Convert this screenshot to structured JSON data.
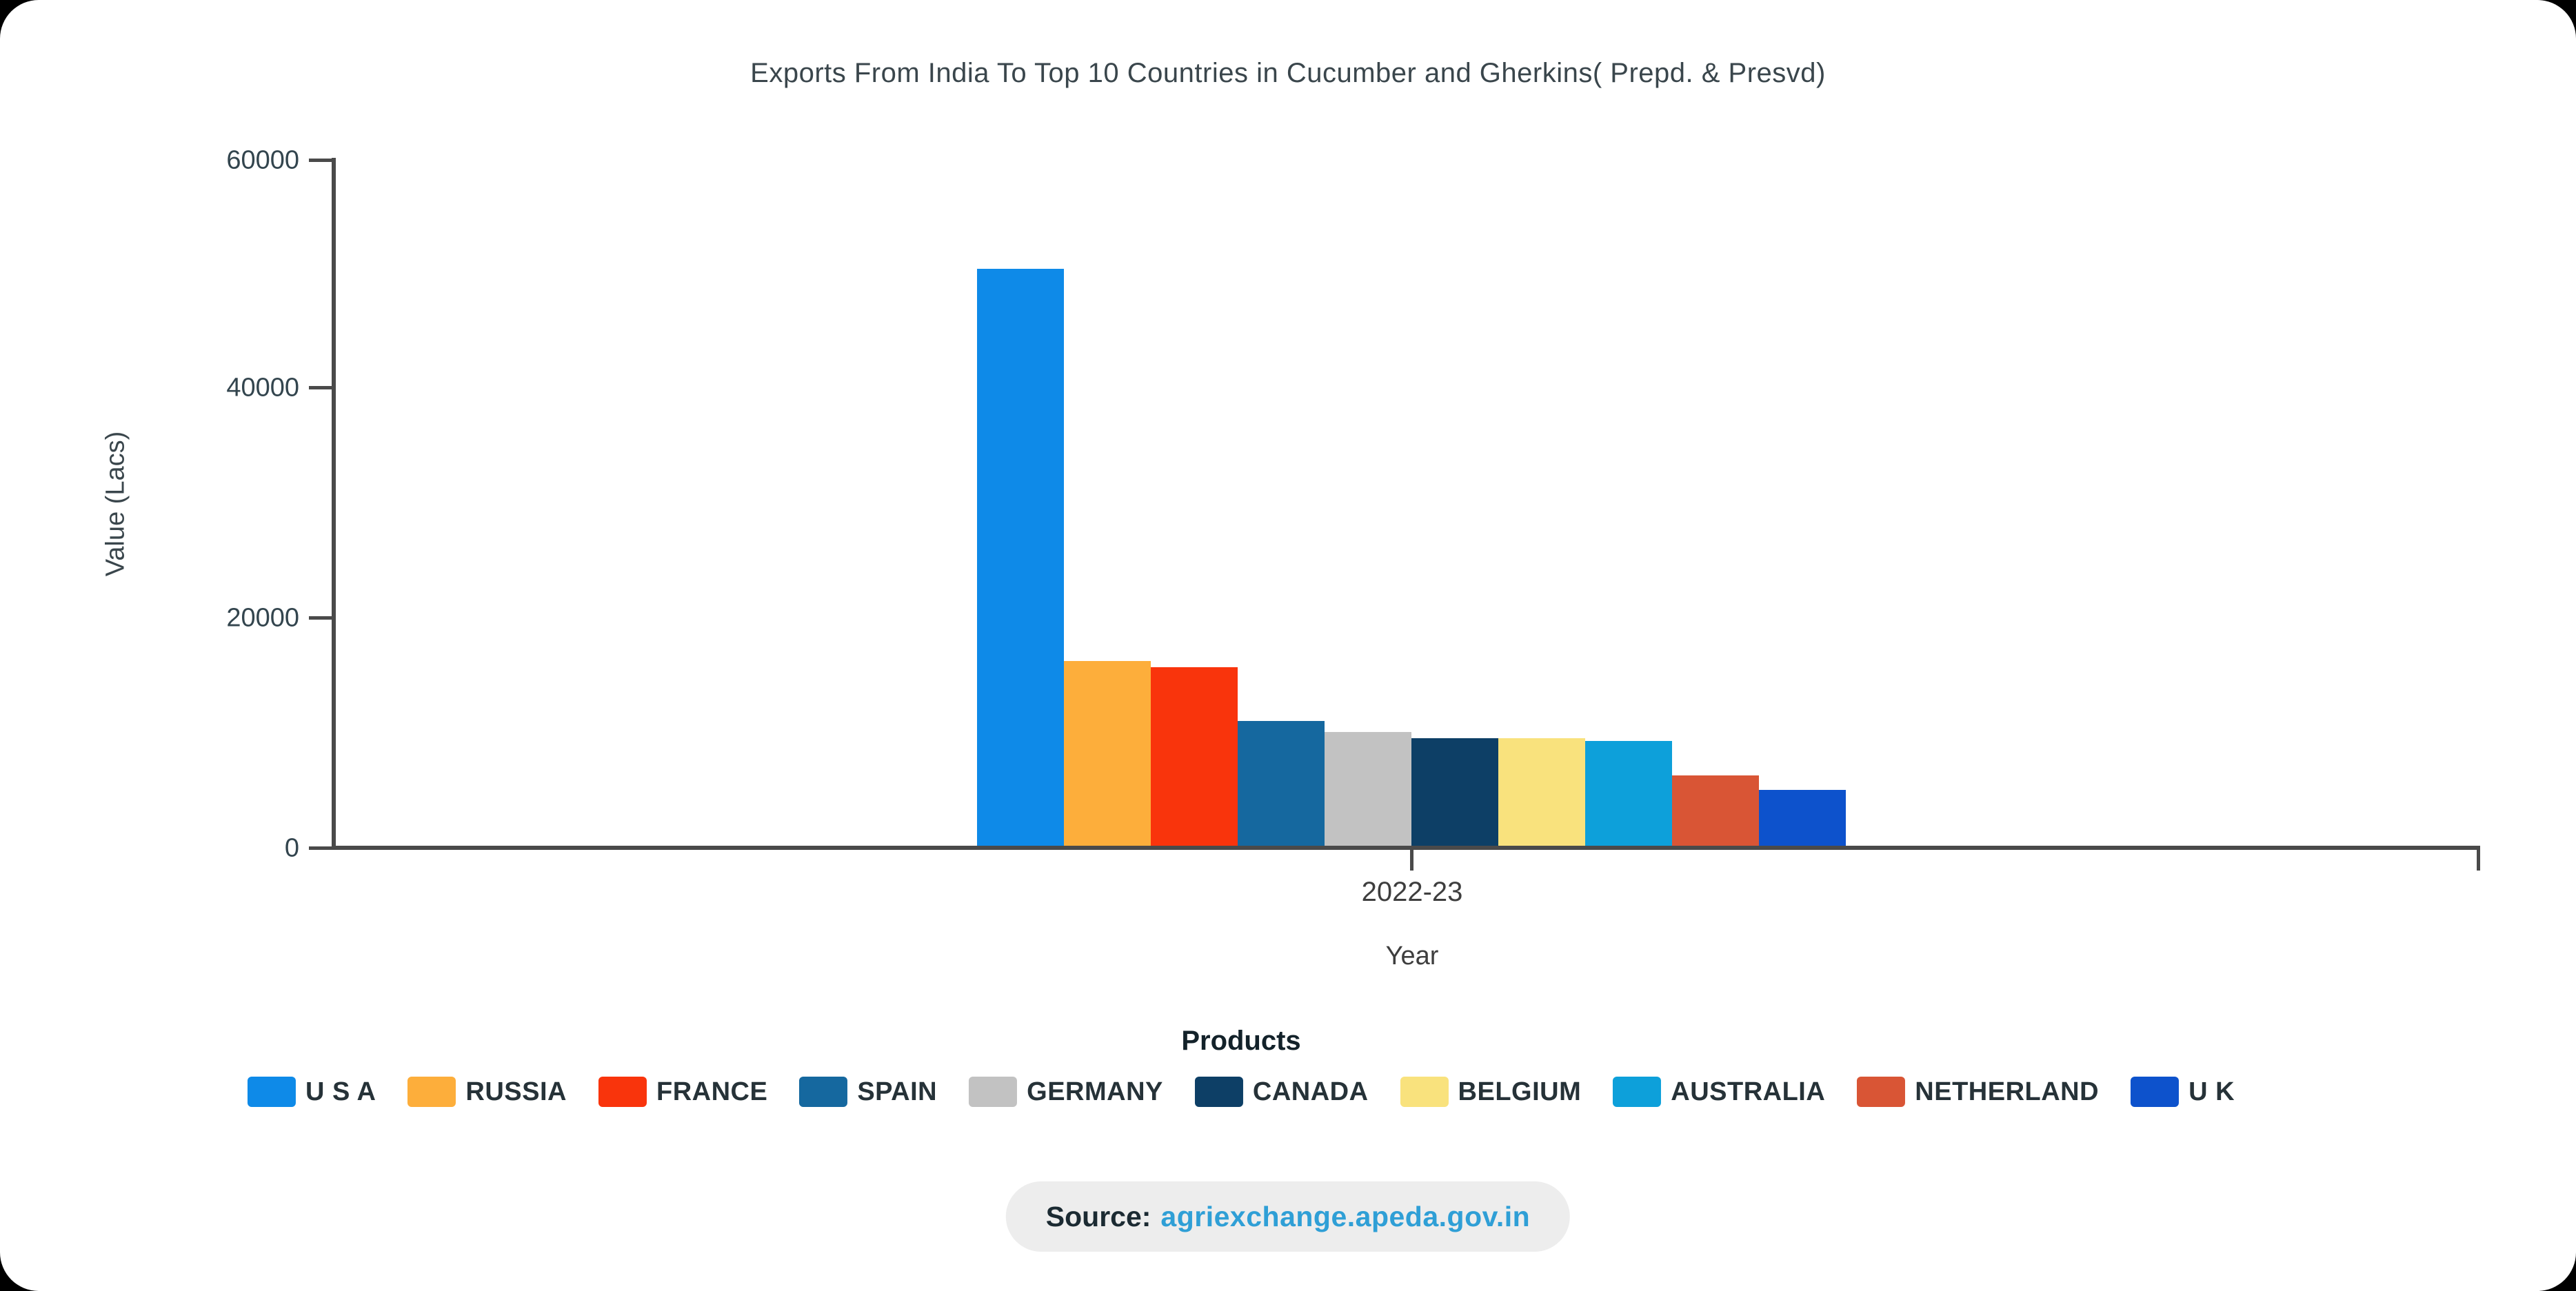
{
  "chart": {
    "title": "Exports From India To Top 10 Countries in Cucumber and Gherkins( Prepd. & Presvd)",
    "y_axis": {
      "label": "Value (Lacs)",
      "ticks": [
        "60000",
        "40000",
        "20000",
        "0"
      ]
    },
    "x_axis": {
      "label": "Year",
      "tick": "2022-23"
    },
    "legend_title": "Products"
  },
  "chart_data": {
    "type": "bar",
    "title": "Exports From India To Top 10 Countries in Cucumber and Gherkins( Prepd. & Presvd)",
    "xlabel": "Year",
    "ylabel": "Value (Lacs)",
    "x_group": "2022-23",
    "ylim": [
      0,
      60000
    ],
    "yticks": [
      0,
      20000,
      40000,
      60000
    ],
    "grid": false,
    "legend_position": "bottom",
    "categories": [
      "U S A",
      "RUSSIA",
      "FRANCE",
      "SPAIN",
      "GERMANY",
      "CANADA",
      "BELGIUM",
      "AUSTRALIA",
      "NETHERLAND",
      "U K"
    ],
    "values": [
      50300,
      16100,
      15600,
      10900,
      9900,
      9400,
      9350,
      9150,
      6150,
      4850
    ],
    "colors": [
      "#0e8ae8",
      "#fdae3b",
      "#f9340c",
      "#15689f",
      "#c2c2c2",
      "#0d3f66",
      "#f9e27d",
      "#0da0da",
      "#d95535",
      "#0d52cc"
    ]
  },
  "source": {
    "prefix": "Source:",
    "link": "agriexchange.apeda.gov.in"
  }
}
